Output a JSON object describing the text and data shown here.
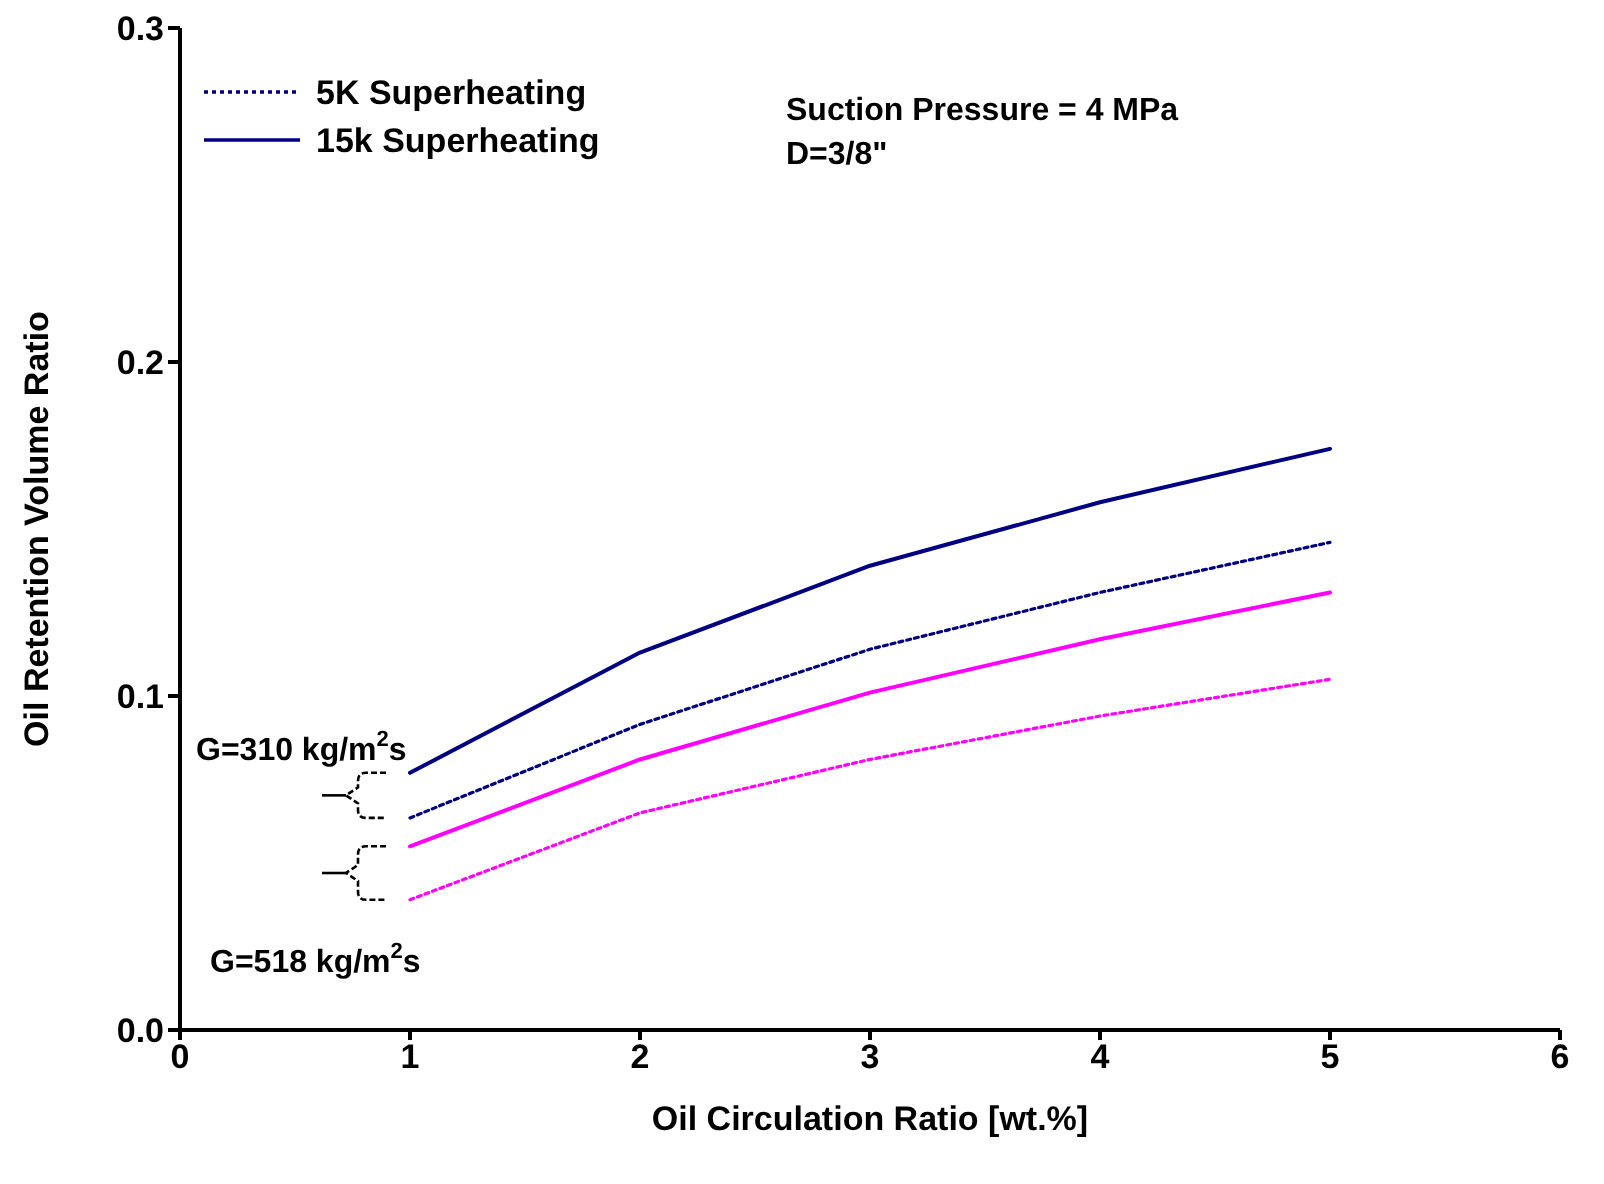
{
  "chart_data": {
    "type": "line",
    "xlabel": "Oil Circulation Ratio [wt.%]",
    "ylabel": "Oil Retention Volume Ratio",
    "x": [
      1,
      2,
      3,
      4,
      5
    ],
    "series": [
      {
        "name": "5K Superheating",
        "color": "#000080",
        "line_style": "dotted",
        "values": [
          0.0635,
          0.0915,
          0.114,
          0.131,
          0.146
        ]
      },
      {
        "name": "15k Superheating",
        "color": "#000080",
        "line_style": "solid",
        "values": [
          0.077,
          0.113,
          0.139,
          0.158,
          0.174
        ]
      },
      {
        "color": "#ff00ff",
        "line_style": "solid",
        "values": [
          0.055,
          0.081,
          0.101,
          0.117,
          0.131
        ]
      },
      {
        "color": "#ff00ff",
        "line_style": "dotted",
        "values": [
          0.039,
          0.065,
          0.081,
          0.094,
          0.105
        ]
      }
    ],
    "xlim": [
      0,
      6
    ],
    "xticks": [
      0,
      1,
      2,
      3,
      4,
      5,
      6
    ],
    "ylim": [
      0,
      0.3
    ],
    "yticks": [
      {
        "value": 0,
        "label": "0.0"
      },
      {
        "value": 0.1,
        "label": "0.1"
      },
      {
        "value": 0.2,
        "label": "0.2"
      },
      {
        "value": 0.3,
        "label": "0.3"
      }
    ],
    "grid": false,
    "legend": "top left",
    "marker": "none",
    "annotations": [
      "Suction Pressure = 4 MPa",
      "D=3/8\"",
      "G=310 kg/m$^{2}$s",
      "G=518 kg/m$^{2}$s"
    ]
  }
}
